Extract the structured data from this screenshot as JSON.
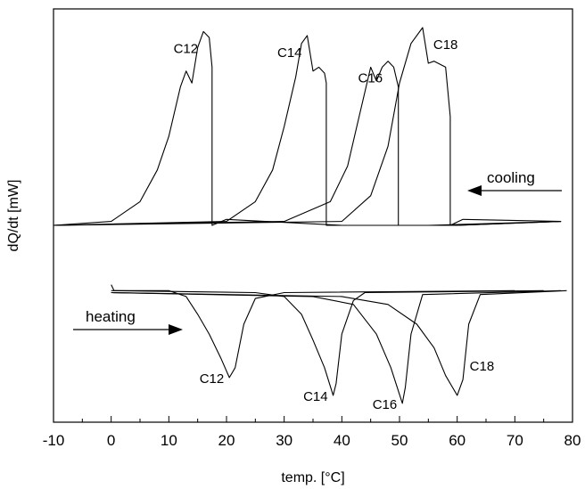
{
  "chart_data": {
    "type": "line",
    "xlabel": "temp. [°C]",
    "ylabel": "dQ/dt [mW]",
    "xlim": [
      -10,
      80
    ],
    "x_ticks": [
      "-10",
      "0",
      "10",
      "20",
      "30",
      "40",
      "50",
      "60",
      "70",
      "80"
    ],
    "y_ticks": [],
    "grid": false,
    "legend": "none",
    "annotations": {
      "cooling": "cooling",
      "heating": "heating"
    },
    "series": [
      {
        "name": "C12",
        "mode": "cooling",
        "x": [
          -10,
          0,
          5,
          8,
          10,
          12,
          13,
          14,
          15,
          16,
          17,
          17.5,
          17.5,
          20,
          40,
          60,
          78
        ],
        "y": [
          0,
          0.02,
          0.12,
          0.28,
          0.45,
          0.7,
          0.78,
          0.72,
          0.9,
          0.98,
          0.95,
          0.8,
          0.0,
          0.03,
          0.0,
          0.0,
          0.02
        ]
      },
      {
        "name": "C14",
        "mode": "cooling",
        "x": [
          -10,
          20,
          25,
          28,
          30,
          32,
          33,
          34,
          35,
          36,
          37,
          37.3,
          37.3,
          40,
          60,
          78
        ],
        "y": [
          0,
          0.02,
          0.12,
          0.28,
          0.5,
          0.75,
          0.92,
          0.96,
          0.78,
          0.8,
          0.77,
          0.72,
          0.0,
          0.0,
          0.0,
          0.02
        ]
      },
      {
        "name": "C16",
        "mode": "cooling",
        "x": [
          -10,
          30,
          38,
          41,
          43,
          45,
          46,
          47,
          48,
          49,
          49.8,
          49.8,
          55,
          78
        ],
        "y": [
          0,
          0.02,
          0.12,
          0.3,
          0.55,
          0.8,
          0.73,
          0.8,
          0.83,
          0.8,
          0.7,
          0.0,
          0.0,
          0.02
        ]
      },
      {
        "name": "C18",
        "mode": "cooling",
        "x": [
          -10,
          40,
          45,
          48,
          50,
          52,
          54,
          55,
          56,
          58,
          58.8,
          58.8,
          61,
          78
        ],
        "y": [
          0,
          0.02,
          0.15,
          0.4,
          0.72,
          0.92,
          1.0,
          0.82,
          0.83,
          0.8,
          0.55,
          0.0,
          0.03,
          0.02
        ]
      },
      {
        "name": "C12",
        "mode": "heating",
        "x": [
          0,
          0.5,
          10,
          13,
          15,
          17,
          19,
          20.5,
          21.5,
          23,
          25,
          30,
          70
        ],
        "y": [
          -0.3,
          -0.33,
          -0.33,
          -0.36,
          -0.45,
          -0.55,
          -0.67,
          -0.77,
          -0.72,
          -0.5,
          -0.37,
          -0.34,
          -0.33
        ]
      },
      {
        "name": "C14",
        "mode": "heating",
        "x": [
          0,
          25,
          30,
          33,
          35,
          37,
          38.5,
          39,
          40,
          42,
          44,
          75
        ],
        "y": [
          -0.33,
          -0.34,
          -0.36,
          -0.45,
          -0.58,
          -0.72,
          -0.86,
          -0.8,
          -0.55,
          -0.38,
          -0.34,
          -0.33
        ]
      },
      {
        "name": "C16",
        "mode": "heating",
        "x": [
          0,
          35,
          42,
          46,
          48.5,
          50.5,
          51,
          52,
          54,
          78
        ],
        "y": [
          -0.34,
          -0.36,
          -0.4,
          -0.55,
          -0.72,
          -0.9,
          -0.82,
          -0.55,
          -0.35,
          -0.33
        ]
      },
      {
        "name": "C18",
        "mode": "heating",
        "x": [
          0,
          40,
          48,
          53,
          56,
          58,
          60,
          61,
          62,
          64,
          79
        ],
        "y": [
          -0.34,
          -0.36,
          -0.4,
          -0.5,
          -0.62,
          -0.76,
          -0.86,
          -0.78,
          -0.5,
          -0.35,
          -0.33
        ]
      }
    ]
  }
}
